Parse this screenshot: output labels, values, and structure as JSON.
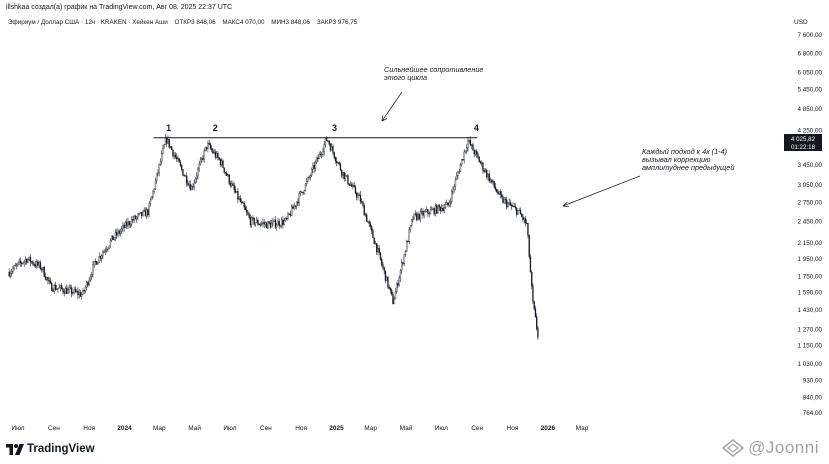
{
  "header": {
    "attribution": "illshkaa создал(а) график на TradingView.com, Авг 08, 2025 22:37 UTC",
    "symbol": "Эфириум / Доллар США · 12ч · KRAKEN · Хейкен Аши",
    "ohlc": [
      "ОТКР3 848,06",
      "МАКС4 070,00",
      "МИН3 848,06",
      "ЗАКР3 976,75"
    ]
  },
  "price_axis": {
    "currency": "USD",
    "last_price": "4 025,82",
    "countdown": "01:22:18"
  },
  "brand": "TradingView",
  "watermark": "@Joonni",
  "colors": {
    "candles": "#131722",
    "background": "#ffffff",
    "label_bg": "#131722"
  },
  "chart_data": {
    "type": "candlestick",
    "scale": "log",
    "title": "",
    "y_ticks": [
      7600,
      6800,
      6050,
      5450,
      4850,
      4250,
      3850,
      3450,
      3050,
      2750,
      2450,
      2150,
      1950,
      1750,
      1590,
      1430,
      1270,
      1150,
      1030,
      930,
      840,
      764
    ],
    "y_tick_labels": [
      "7 600,00",
      "6 800,00",
      "6 050,00",
      "5 450,00",
      "4 850,00",
      "4 250,00",
      "3 850,00",
      "3 450,00",
      "3 050,00",
      "2 750,00",
      "2 450,00",
      "2 150,00",
      "1 950,00",
      "1 750,00",
      "1 590,00",
      "1 430,00",
      "1 270,00",
      "1 150,00",
      "1 030,00",
      "930,00",
      "840,00",
      "764,00"
    ],
    "x_ticks": [
      "2023-07",
      "2023-09",
      "2023-11",
      "2024-01",
      "2024-03",
      "2024-05",
      "2024-07",
      "2024-09",
      "2024-11",
      "2025-01",
      "2025-03",
      "2025-05",
      "2025-07",
      "2025-09",
      "2025-11",
      "2026-01",
      "2026-03"
    ],
    "x_tick_labels": [
      "Июл",
      "Сен",
      "Ноя",
      "2024",
      "Мар",
      "Май",
      "Июл",
      "Сен",
      "Ноя",
      "2025",
      "Мар",
      "Май",
      "Июл",
      "Сен",
      "Ноя",
      "2026",
      "Мар"
    ],
    "path": [
      [
        "2023-06-15",
        1800
      ],
      [
        "2023-07-15",
        1950
      ],
      [
        "2023-08-10",
        1850
      ],
      [
        "2023-08-25",
        1650
      ],
      [
        "2023-09-15",
        1620
      ],
      [
        "2023-10-20",
        1570
      ],
      [
        "2023-11-10",
        1900
      ],
      [
        "2023-12-10",
        2200
      ],
      [
        "2024-01-10",
        2450
      ],
      [
        "2024-02-10",
        2600
      ],
      [
        "2024-03-12",
        4050
      ],
      [
        "2024-04-10",
        3300
      ],
      [
        "2024-04-25",
        3000
      ],
      [
        "2024-05-22",
        3900
      ],
      [
        "2024-06-15",
        3500
      ],
      [
        "2024-07-05",
        3000
      ],
      [
        "2024-08-05",
        2450
      ],
      [
        "2024-09-05",
        2400
      ],
      [
        "2024-10-05",
        2450
      ],
      [
        "2024-11-10",
        3100
      ],
      [
        "2024-12-15",
        4050
      ],
      [
        "2025-01-10",
        3300
      ],
      [
        "2025-02-10",
        2800
      ],
      [
        "2025-03-10",
        2100
      ],
      [
        "2025-04-08",
        1500
      ],
      [
        "2025-05-12",
        2500
      ],
      [
        "2025-06-10",
        2600
      ],
      [
        "2025-07-12",
        2700
      ],
      [
        "2025-08-15",
        4000
      ],
      [
        "2025-09-15",
        3300
      ],
      [
        "2025-10-12",
        2800
      ],
      [
        "2025-11-10",
        2600
      ],
      [
        "2025-11-25",
        2400
      ],
      [
        "2025-12-05",
        1500
      ],
      [
        "2025-12-15",
        1200
      ]
    ],
    "resistance": {
      "price": 4070,
      "from": "2024-02-20",
      "to": "2025-09-01"
    },
    "touch_labels": [
      {
        "text": "1",
        "date": "2024-03-12"
      },
      {
        "text": "2",
        "date": "2024-05-28"
      },
      {
        "text": "3",
        "date": "2024-12-20"
      },
      {
        "text": "4",
        "date": "2025-08-22"
      }
    ],
    "annotations": [
      {
        "text": [
          "Сильнейшее сопротивление",
          "этого цикла"
        ]
      },
      {
        "text": [
          "Каждый подход к 4к (1-4)",
          "вызывал коррекцию",
          "амплитуднее предыдущей"
        ]
      }
    ]
  }
}
